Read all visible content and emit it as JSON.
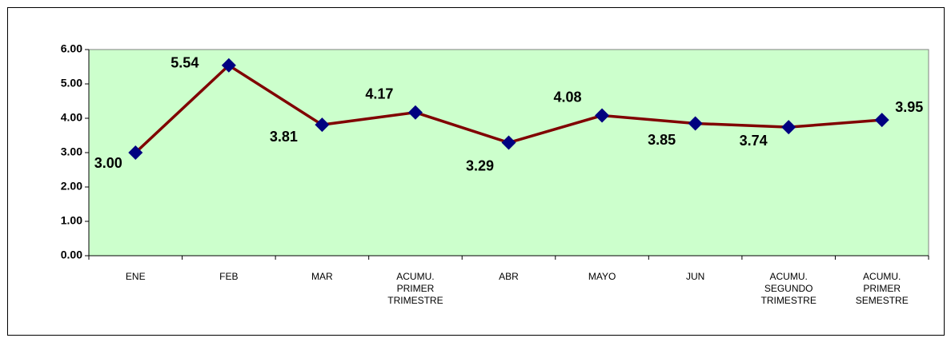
{
  "chart_data": {
    "type": "line",
    "categories": [
      "ENE",
      "FEB",
      "MAR",
      "ACUMU.\nPRIMER\nTRIMESTRE",
      "ABR",
      "MAYO",
      "JUN",
      "ACUMU.\nSEGUNDO\nTRIMESTRE",
      "ACUMU.\nPRIMER\nSEMESTRE"
    ],
    "values": [
      3.0,
      5.54,
      3.81,
      4.17,
      3.29,
      4.08,
      3.85,
      3.74,
      3.95
    ],
    "value_labels": [
      "3.00",
      "5.54",
      "3.81",
      "4.17",
      "3.29",
      "4.08",
      "3.85",
      "3.74",
      "3.95"
    ],
    "color": "#800000",
    "marker_color": "#000080",
    "plot_background": "#ccffcc",
    "ylim": [
      0,
      6
    ],
    "yticks": [
      {
        "value": 0,
        "label": "0.00"
      },
      {
        "value": 1,
        "label": "1.00"
      },
      {
        "value": 2,
        "label": "2.00"
      },
      {
        "value": 3,
        "label": "3.00"
      },
      {
        "value": 4,
        "label": "4.00"
      },
      {
        "value": 5,
        "label": "5.00"
      },
      {
        "value": 6,
        "label": "6.00"
      }
    ],
    "grid": false
  }
}
